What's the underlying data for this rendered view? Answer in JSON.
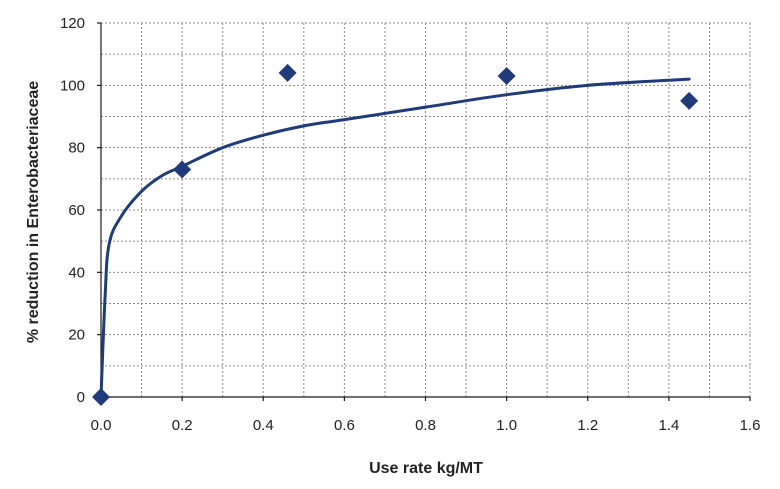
{
  "chart_data": {
    "type": "scatter",
    "title": "",
    "xlabel": "Use rate kg/MT",
    "ylabel": "% reduction in Enterobacteriaceae",
    "xlim": [
      0,
      1.6
    ],
    "ylim": [
      0,
      120
    ],
    "x_ticks": [
      0.0,
      0.2,
      0.4,
      0.6,
      0.8,
      1.0,
      1.2,
      1.4,
      1.6
    ],
    "x_tick_labels": [
      "0.0",
      "0.2",
      "0.4",
      "0.6",
      "0.8",
      "1.0",
      "1.2",
      "1.4",
      "1.6"
    ],
    "y_ticks": [
      0,
      20,
      40,
      60,
      80,
      100,
      120
    ],
    "y_tick_labels": [
      "0",
      "20",
      "40",
      "60",
      "80",
      "100",
      "120"
    ],
    "grid": true,
    "marker_color": "#1f3b7a",
    "line_color": "#1f3b7a",
    "series": [
      {
        "kind": "points",
        "x": [
          0.0,
          0.2,
          0.46,
          1.0,
          1.45
        ],
        "y": [
          0,
          73,
          104,
          103,
          95
        ]
      },
      {
        "kind": "fit-line",
        "x": [
          0.0,
          0.01,
          0.02,
          0.05,
          0.1,
          0.15,
          0.2,
          0.3,
          0.4,
          0.5,
          0.6,
          0.8,
          1.0,
          1.2,
          1.45
        ],
        "y": [
          0,
          32,
          49,
          58,
          66,
          71,
          74,
          80,
          84,
          87,
          89,
          93,
          97,
          100,
          102
        ]
      }
    ]
  }
}
